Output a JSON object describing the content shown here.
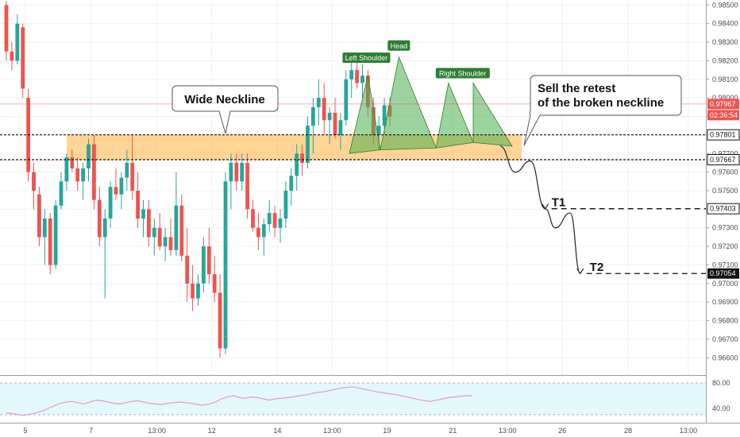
{
  "chart_data": {
    "type": "candlestick",
    "y_axis": {
      "min": 0.9655,
      "max": 0.9851,
      "ticks": [
        "0.98500",
        "0.98400",
        "0.98300",
        "0.98200",
        "0.98100",
        "0.98000",
        "0.97900",
        "0.97800",
        "0.97700",
        "0.97600",
        "0.97500",
        "0.97400",
        "0.97300",
        "0.97200",
        "0.97100",
        "0.97000",
        "0.96900",
        "0.96800",
        "0.96700",
        "0.96600"
      ]
    },
    "x_axis": {
      "labels": [
        {
          "text": "5",
          "index": 0
        },
        {
          "text": "7",
          "index": 12
        },
        {
          "text": "13:00",
          "index": 24
        },
        {
          "text": "12",
          "index": 34
        },
        {
          "text": "14",
          "index": 46
        },
        {
          "text": "13:00",
          "index": 56
        },
        {
          "text": "19",
          "index": 66
        },
        {
          "text": "21",
          "index": 78
        },
        {
          "text": "13:00",
          "index": 88
        },
        {
          "text": "26",
          "index": 98
        },
        {
          "text": "28",
          "index": 110
        },
        {
          "text": "13:00",
          "index": 121
        }
      ]
    },
    "candles": [
      [
        0.985,
        0.9852,
        0.982,
        0.9825
      ],
      [
        0.9825,
        0.983,
        0.9815,
        0.982
      ],
      [
        0.982,
        0.9845,
        0.9818,
        0.984
      ],
      [
        0.9838,
        0.984,
        0.98,
        0.9805
      ],
      [
        0.98,
        0.9805,
        0.9755,
        0.976
      ],
      [
        0.976,
        0.9765,
        0.974,
        0.975
      ],
      [
        0.9748,
        0.9752,
        0.972,
        0.9725
      ],
      [
        0.9725,
        0.974,
        0.971,
        0.9735
      ],
      [
        0.9735,
        0.9738,
        0.9705,
        0.971
      ],
      [
        0.971,
        0.9745,
        0.9708,
        0.9742
      ],
      [
        0.9742,
        0.976,
        0.974,
        0.9755
      ],
      [
        0.9755,
        0.977,
        0.975,
        0.9768
      ],
      [
        0.9768,
        0.9772,
        0.976,
        0.9762
      ],
      [
        0.9762,
        0.9768,
        0.975,
        0.9755
      ],
      [
        0.9755,
        0.9765,
        0.9745,
        0.9762
      ],
      [
        0.9762,
        0.9778,
        0.9755,
        0.9775
      ],
      [
        0.9775,
        0.978,
        0.974,
        0.9745
      ],
      [
        0.9745,
        0.9752,
        0.972,
        0.9725
      ],
      [
        0.9725,
        0.974,
        0.9692,
        0.9735
      ],
      [
        0.9735,
        0.9755,
        0.973,
        0.9752
      ],
      [
        0.9752,
        0.9762,
        0.9745,
        0.9748
      ],
      [
        0.9748,
        0.976,
        0.974,
        0.9757
      ],
      [
        0.9757,
        0.9772,
        0.975,
        0.9765
      ],
      [
        0.9765,
        0.978,
        0.9745,
        0.975
      ],
      [
        0.975,
        0.976,
        0.973,
        0.9735
      ],
      [
        0.9735,
        0.9745,
        0.9725,
        0.974
      ],
      [
        0.974,
        0.9745,
        0.972,
        0.9725
      ],
      [
        0.9725,
        0.9735,
        0.9715,
        0.973
      ],
      [
        0.973,
        0.9738,
        0.9718,
        0.972
      ],
      [
        0.972,
        0.973,
        0.9712,
        0.9725
      ],
      [
        0.9725,
        0.9735,
        0.9715,
        0.9718
      ],
      [
        0.9718,
        0.976,
        0.9715,
        0.9742
      ],
      [
        0.9742,
        0.9748,
        0.9712,
        0.9715
      ],
      [
        0.9715,
        0.973,
        0.969,
        0.97
      ],
      [
        0.97,
        0.971,
        0.9685,
        0.9692
      ],
      [
        0.9692,
        0.9705,
        0.9688,
        0.97
      ],
      [
        0.97,
        0.9725,
        0.9695,
        0.972
      ],
      [
        0.972,
        0.973,
        0.97,
        0.9705
      ],
      [
        0.9705,
        0.9715,
        0.969,
        0.9695
      ],
      [
        0.9695,
        0.9705,
        0.966,
        0.9665
      ],
      [
        0.9665,
        0.976,
        0.9662,
        0.9755
      ],
      [
        0.9755,
        0.977,
        0.974,
        0.9765
      ],
      [
        0.9765,
        0.977,
        0.975,
        0.9755
      ],
      [
        0.9755,
        0.977,
        0.975,
        0.9765
      ],
      [
        0.9765,
        0.977,
        0.9735,
        0.974
      ],
      [
        0.974,
        0.9745,
        0.9728,
        0.973
      ],
      [
        0.973,
        0.9738,
        0.9718,
        0.9725
      ],
      [
        0.9725,
        0.9735,
        0.9715,
        0.9732
      ],
      [
        0.9732,
        0.9745,
        0.9728,
        0.9738
      ],
      [
        0.9738,
        0.9742,
        0.9725,
        0.973
      ],
      [
        0.973,
        0.974,
        0.9722,
        0.9735
      ],
      [
        0.9735,
        0.9755,
        0.973,
        0.975
      ],
      [
        0.975,
        0.9762,
        0.9742,
        0.9758
      ],
      [
        0.9758,
        0.9775,
        0.975,
        0.977
      ],
      [
        0.977,
        0.9775,
        0.9758,
        0.9765
      ],
      [
        0.9765,
        0.979,
        0.9762,
        0.9785
      ],
      [
        0.9785,
        0.98,
        0.977,
        0.9795
      ],
      [
        0.9795,
        0.981,
        0.9785,
        0.98
      ],
      [
        0.98,
        0.9808,
        0.978,
        0.9788
      ],
      [
        0.9788,
        0.9795,
        0.9775,
        0.9792
      ],
      [
        0.9792,
        0.98,
        0.9778,
        0.978
      ],
      [
        0.978,
        0.9792,
        0.9772,
        0.9788
      ],
      [
        0.9788,
        0.9815,
        0.9785,
        0.981
      ],
      [
        0.981,
        0.982,
        0.98,
        0.9815
      ],
      [
        0.9815,
        0.9822,
        0.9805,
        0.9808
      ],
      [
        0.9808,
        0.9818,
        0.98,
        0.9812
      ],
      [
        0.9812,
        0.9815,
        0.979,
        0.9795
      ],
      [
        0.9795,
        0.98,
        0.9775,
        0.978
      ],
      [
        0.978,
        0.979,
        0.9772,
        0.9785
      ],
      [
        0.9785,
        0.98,
        0.978,
        0.9796
      ],
      [
        0.9796,
        0.98,
        0.9785,
        0.979
      ]
    ],
    "neckline_zone": {
      "top": 0.97801,
      "bottom": 0.97667,
      "x_start_index": 6,
      "x_end_index": 94
    },
    "pattern": {
      "left_shoulder": {
        "label": "Left Shoulder",
        "start": [
          41,
          0.97701
        ],
        "peak": [
          44,
          0.9812
        ],
        "end": [
          46,
          0.9772
        ]
      },
      "head": {
        "label": "Head",
        "start": [
          46,
          0.9772
        ],
        "peak": [
          49,
          0.9822
        ],
        "end": [
          55,
          0.9773
        ]
      },
      "right_shoulder": {
        "label": "Right Shoulder",
        "start": [
          55,
          0.9773
        ],
        "peak": [
          57,
          0.9808
        ],
        "end": [
          61,
          0.9776
        ]
      }
    },
    "projection": [
      [
        63,
        0.9774
      ],
      [
        66,
        0.976
      ],
      [
        69,
        0.9766
      ],
      [
        72,
        0.97403
      ],
      [
        74,
        0.973
      ],
      [
        77,
        0.9738
      ],
      [
        79,
        0.97054
      ]
    ],
    "targets": [
      {
        "label": "T1",
        "price": 0.97403,
        "price_label": "0.97403"
      },
      {
        "label": "T2",
        "price": 0.97054,
        "price_label": "0.97054"
      }
    ],
    "neckline_price_labels": {
      "top": "0.97801",
      "bottom": "0.97667"
    },
    "current_price": {
      "value": 0.97967,
      "label": "0.97967",
      "countdown": "02:36:54"
    },
    "annotations": [
      {
        "text": "Wide Neckline"
      },
      {
        "text_lines": [
          "Sell the retest",
          "of the broken neckline"
        ]
      }
    ],
    "rsi": {
      "levels": [
        "80.00",
        "40.00"
      ],
      "min": 20,
      "max": 90,
      "values": [
        33,
        32,
        30,
        29,
        31,
        33,
        36,
        40,
        44,
        48,
        50,
        51,
        49,
        47,
        50,
        53,
        52,
        50,
        48,
        47,
        49,
        51,
        52,
        50,
        48,
        47,
        46,
        48,
        49,
        50,
        49,
        48,
        46,
        45,
        47,
        50,
        55,
        58,
        60,
        57,
        56,
        58,
        57,
        55,
        53,
        55,
        56,
        57,
        58,
        60,
        61,
        63,
        65,
        66,
        68,
        70,
        72,
        73,
        74,
        72,
        70,
        68,
        66,
        65,
        63,
        62,
        60,
        58,
        56,
        54,
        52,
        51,
        53,
        55,
        57,
        58,
        59,
        60,
        60
      ]
    }
  }
}
